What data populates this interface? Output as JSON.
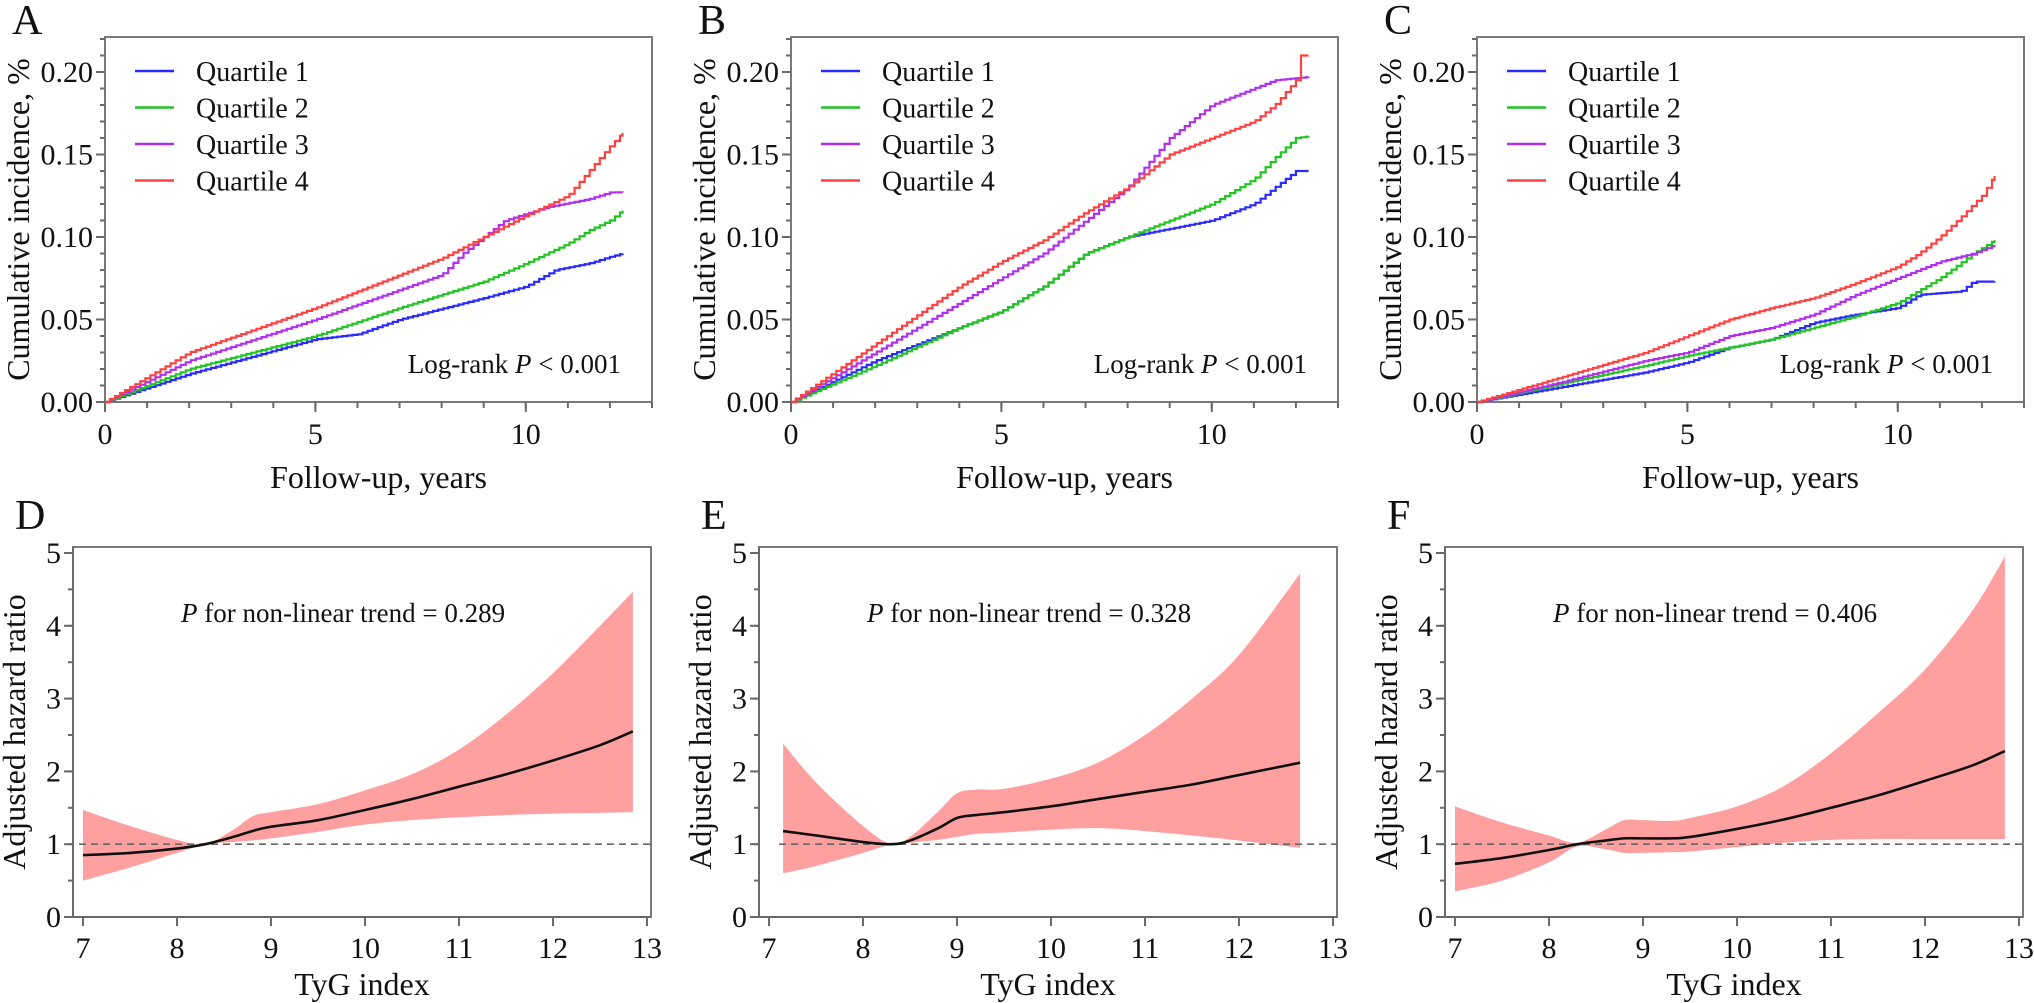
{
  "chart_data": [
    {
      "panel": "A",
      "type": "line",
      "xlabel": "Follow-up, years",
      "ylabel": "Cumulative incidence, %",
      "xlim": [
        0,
        13
      ],
      "ylim": [
        0,
        0.22
      ],
      "xticks": [
        0,
        5,
        10
      ],
      "xtick_labels": [
        "0",
        "5",
        "10"
      ],
      "yticks": [
        0,
        0.05,
        0.1,
        0.15,
        0.2
      ],
      "ytick_labels": [
        "0.00",
        "0.05",
        "0.10",
        "0.15",
        "0.20"
      ],
      "legend": "top-left",
      "grid": false,
      "annotation": {
        "prefix": "Log-rank ",
        "italic": "P",
        "suffix": " < 0.001"
      },
      "series": [
        {
          "name": "Quartile 1",
          "color": "#2a2aff",
          "points": [
            [
              0,
              0
            ],
            [
              2,
              0.017
            ],
            [
              5,
              0.038
            ],
            [
              6,
              0.041
            ],
            [
              7,
              0.05
            ],
            [
              9,
              0.063
            ],
            [
              10,
              0.07
            ],
            [
              10.7,
              0.08
            ],
            [
              11.5,
              0.084
            ],
            [
              12,
              0.088
            ],
            [
              12.3,
              0.09
            ]
          ]
        },
        {
          "name": "Quartile 2",
          "color": "#22c422",
          "points": [
            [
              0,
              0
            ],
            [
              2,
              0.02
            ],
            [
              5,
              0.04
            ],
            [
              7,
              0.057
            ],
            [
              9,
              0.073
            ],
            [
              10,
              0.084
            ],
            [
              11,
              0.096
            ],
            [
              11.5,
              0.104
            ],
            [
              12,
              0.11
            ],
            [
              12.3,
              0.116
            ]
          ]
        },
        {
          "name": "Quartile 3",
          "color": "#b030f0",
          "points": [
            [
              0,
              0
            ],
            [
              2,
              0.025
            ],
            [
              5,
              0.05
            ],
            [
              7,
              0.068
            ],
            [
              8,
              0.077
            ],
            [
              8.5,
              0.09
            ],
            [
              9.5,
              0.11
            ],
            [
              10.5,
              0.118
            ],
            [
              11.5,
              0.123
            ],
            [
              12,
              0.127
            ],
            [
              12.3,
              0.127
            ]
          ]
        },
        {
          "name": "Quartile 4",
          "color": "#ff4040",
          "points": [
            [
              0,
              0
            ],
            [
              2,
              0.03
            ],
            [
              5,
              0.057
            ],
            [
              7,
              0.077
            ],
            [
              8,
              0.087
            ],
            [
              9,
              0.1
            ],
            [
              10,
              0.113
            ],
            [
              11,
              0.125
            ],
            [
              11.5,
              0.14
            ],
            [
              12,
              0.155
            ],
            [
              12.3,
              0.163
            ]
          ]
        }
      ]
    },
    {
      "panel": "B",
      "type": "line",
      "xlabel": "Follow-up, years",
      "ylabel": "Cumulative incidence, %",
      "xlim": [
        0,
        13
      ],
      "ylim": [
        0,
        0.22
      ],
      "xticks": [
        0,
        5,
        10
      ],
      "xtick_labels": [
        "0",
        "5",
        "10"
      ],
      "yticks": [
        0,
        0.05,
        0.1,
        0.15,
        0.2
      ],
      "ytick_labels": [
        "0.00",
        "0.05",
        "0.10",
        "0.15",
        "0.20"
      ],
      "legend": "top-left",
      "grid": false,
      "annotation": {
        "prefix": "Log-rank ",
        "italic": "P",
        "suffix": " < 0.001"
      },
      "series": [
        {
          "name": "Quartile 1",
          "color": "#2a2aff",
          "points": [
            [
              0,
              0
            ],
            [
              2,
              0.025
            ],
            [
              4,
              0.045
            ],
            [
              5,
              0.055
            ],
            [
              6,
              0.07
            ],
            [
              7,
              0.09
            ],
            [
              8,
              0.1
            ],
            [
              9,
              0.105
            ],
            [
              10,
              0.11
            ],
            [
              11,
              0.12
            ],
            [
              11.5,
              0.13
            ],
            [
              12,
              0.14
            ],
            [
              12.3,
              0.14
            ]
          ]
        },
        {
          "name": "Quartile 2",
          "color": "#22c422",
          "points": [
            [
              0,
              0
            ],
            [
              2,
              0.022
            ],
            [
              4,
              0.045
            ],
            [
              5,
              0.055
            ],
            [
              6,
              0.07
            ],
            [
              7,
              0.09
            ],
            [
              8,
              0.1
            ],
            [
              9,
              0.11
            ],
            [
              10,
              0.12
            ],
            [
              11,
              0.135
            ],
            [
              11.5,
              0.148
            ],
            [
              12,
              0.16
            ],
            [
              12.3,
              0.161
            ]
          ]
        },
        {
          "name": "Quartile 3",
          "color": "#b030f0",
          "points": [
            [
              0,
              0
            ],
            [
              2,
              0.03
            ],
            [
              4,
              0.06
            ],
            [
              5,
              0.075
            ],
            [
              6,
              0.09
            ],
            [
              7,
              0.11
            ],
            [
              8,
              0.13
            ],
            [
              9,
              0.16
            ],
            [
              10,
              0.18
            ],
            [
              11,
              0.19
            ],
            [
              11.5,
              0.195
            ],
            [
              12.3,
              0.197
            ]
          ]
        },
        {
          "name": "Quartile 4",
          "color": "#ff4040",
          "points": [
            [
              0,
              0
            ],
            [
              2,
              0.035
            ],
            [
              4,
              0.07
            ],
            [
              5,
              0.085
            ],
            [
              6,
              0.098
            ],
            [
              7,
              0.115
            ],
            [
              8,
              0.13
            ],
            [
              9,
              0.15
            ],
            [
              10,
              0.16
            ],
            [
              11,
              0.17
            ],
            [
              11.5,
              0.18
            ],
            [
              12,
              0.195
            ],
            [
              12.1,
              0.21
            ],
            [
              12.3,
              0.21
            ]
          ]
        }
      ]
    },
    {
      "panel": "C",
      "type": "line",
      "xlabel": "Follow-up, years",
      "ylabel": "Cumulative incidence, %",
      "xlim": [
        0,
        13
      ],
      "ylim": [
        0,
        0.22
      ],
      "xticks": [
        0,
        5,
        10
      ],
      "xtick_labels": [
        "0",
        "5",
        "10"
      ],
      "yticks": [
        0,
        0.05,
        0.1,
        0.15,
        0.2
      ],
      "ytick_labels": [
        "0.00",
        "0.05",
        "0.10",
        "0.15",
        "0.20"
      ],
      "legend": "top-left",
      "grid": false,
      "annotation": {
        "prefix": "Log-rank ",
        "italic": "P",
        "suffix": " < 0.001"
      },
      "series": [
        {
          "name": "Quartile 1",
          "color": "#2a2aff",
          "points": [
            [
              0,
              0
            ],
            [
              2,
              0.009
            ],
            [
              4,
              0.018
            ],
            [
              5,
              0.024
            ],
            [
              6,
              0.033
            ],
            [
              7,
              0.038
            ],
            [
              8,
              0.048
            ],
            [
              9,
              0.053
            ],
            [
              10,
              0.057
            ],
            [
              10.5,
              0.065
            ],
            [
              11.5,
              0.067
            ],
            [
              11.8,
              0.073
            ],
            [
              12.3,
              0.073
            ]
          ]
        },
        {
          "name": "Quartile 2",
          "color": "#22c422",
          "points": [
            [
              0,
              0
            ],
            [
              2,
              0.011
            ],
            [
              4,
              0.022
            ],
            [
              5,
              0.028
            ],
            [
              6,
              0.033
            ],
            [
              7,
              0.038
            ],
            [
              8,
              0.045
            ],
            [
              9,
              0.052
            ],
            [
              10,
              0.06
            ],
            [
              11,
              0.075
            ],
            [
              11.8,
              0.09
            ],
            [
              12.3,
              0.098
            ]
          ]
        },
        {
          "name": "Quartile 3",
          "color": "#b030f0",
          "points": [
            [
              0,
              0
            ],
            [
              2,
              0.012
            ],
            [
              4,
              0.025
            ],
            [
              5,
              0.03
            ],
            [
              6,
              0.04
            ],
            [
              7,
              0.045
            ],
            [
              8,
              0.053
            ],
            [
              9,
              0.065
            ],
            [
              10,
              0.075
            ],
            [
              11,
              0.085
            ],
            [
              11.8,
              0.09
            ],
            [
              12.3,
              0.095
            ]
          ]
        },
        {
          "name": "Quartile 4",
          "color": "#ff4040",
          "points": [
            [
              0,
              0
            ],
            [
              2,
              0.015
            ],
            [
              4,
              0.03
            ],
            [
              5,
              0.04
            ],
            [
              6,
              0.05
            ],
            [
              7,
              0.057
            ],
            [
              8,
              0.063
            ],
            [
              9,
              0.072
            ],
            [
              10,
              0.082
            ],
            [
              10.5,
              0.09
            ],
            [
              11,
              0.1
            ],
            [
              11.5,
              0.112
            ],
            [
              12,
              0.125
            ],
            [
              12.3,
              0.137
            ]
          ]
        }
      ]
    },
    {
      "panel": "D",
      "type": "area",
      "xlabel": "TyG index",
      "ylabel": "Adjusted hazard ratio",
      "xlim": [
        7,
        13
      ],
      "ylim": [
        0,
        5
      ],
      "xticks": [
        7,
        8,
        9,
        10,
        11,
        12,
        13
      ],
      "xtick_labels": [
        "7",
        "8",
        "9",
        "10",
        "11",
        "12",
        "13"
      ],
      "yticks": [
        0,
        1,
        2,
        3,
        4,
        5
      ],
      "ytick_labels": [
        "0",
        "1",
        "2",
        "3",
        "4",
        "5"
      ],
      "reference_line": 1,
      "grid": false,
      "line_color": "#111111",
      "band_color": "#ffa0a0",
      "annotation": {
        "prefix": "",
        "italic": "P",
        "suffix": " for non-linear trend = 0.289"
      },
      "x": [
        7,
        7.5,
        8,
        8.3,
        8.6,
        8.8,
        9,
        9.5,
        10,
        10.5,
        11,
        11.5,
        12,
        12.5,
        12.85
      ],
      "hr": [
        0.85,
        0.88,
        0.94,
        1.0,
        1.1,
        1.18,
        1.24,
        1.33,
        1.47,
        1.62,
        1.79,
        1.96,
        2.15,
        2.36,
        2.55
      ],
      "lower": [
        0.5,
        0.68,
        0.88,
        1.0,
        1.03,
        1.05,
        1.08,
        1.17,
        1.27,
        1.33,
        1.37,
        1.4,
        1.42,
        1.43,
        1.44
      ],
      "upper": [
        1.47,
        1.25,
        1.06,
        1.0,
        1.2,
        1.38,
        1.44,
        1.55,
        1.74,
        1.96,
        2.3,
        2.78,
        3.35,
        4.0,
        4.47
      ]
    },
    {
      "panel": "E",
      "type": "area",
      "xlabel": "TyG index",
      "ylabel": "Adjusted hazard ratio",
      "xlim": [
        7,
        13
      ],
      "ylim": [
        0,
        5
      ],
      "xticks": [
        7,
        8,
        9,
        10,
        11,
        12,
        13
      ],
      "xtick_labels": [
        "7",
        "8",
        "9",
        "10",
        "11",
        "12",
        "13"
      ],
      "yticks": [
        0,
        1,
        2,
        3,
        4,
        5
      ],
      "ytick_labels": [
        "0",
        "1",
        "2",
        "3",
        "4",
        "5"
      ],
      "reference_line": 1,
      "grid": false,
      "line_color": "#111111",
      "band_color": "#ffa0a0",
      "annotation": {
        "prefix": "",
        "italic": "P",
        "suffix": " for non-linear trend = 0.328"
      },
      "x": [
        7.15,
        7.5,
        8,
        8.3,
        8.5,
        8.8,
        9,
        9.2,
        9.5,
        10,
        10.5,
        11,
        11.5,
        12,
        12.65
      ],
      "hr": [
        1.18,
        1.12,
        1.03,
        1.0,
        1.05,
        1.22,
        1.36,
        1.4,
        1.44,
        1.52,
        1.62,
        1.72,
        1.82,
        1.95,
        2.12
      ],
      "lower": [
        0.6,
        0.7,
        0.88,
        1.0,
        1.02,
        1.06,
        1.1,
        1.14,
        1.16,
        1.2,
        1.22,
        1.18,
        1.12,
        1.05,
        0.95
      ],
      "upper": [
        2.38,
        1.85,
        1.25,
        1.0,
        1.1,
        1.45,
        1.7,
        1.75,
        1.76,
        1.9,
        2.12,
        2.5,
        3.0,
        3.6,
        4.72
      ]
    },
    {
      "panel": "F",
      "type": "area",
      "xlabel": "TyG index",
      "ylabel": "Adjusted hazard ratio",
      "xlim": [
        7,
        13
      ],
      "ylim": [
        0,
        5
      ],
      "xticks": [
        7,
        8,
        9,
        10,
        11,
        12,
        13
      ],
      "xtick_labels": [
        "7",
        "8",
        "9",
        "10",
        "11",
        "12",
        "13"
      ],
      "yticks": [
        0,
        1,
        2,
        3,
        4,
        5
      ],
      "ytick_labels": [
        "0",
        "1",
        "2",
        "3",
        "4",
        "5"
      ],
      "reference_line": 1,
      "grid": false,
      "line_color": "#111111",
      "band_color": "#ffa0a0",
      "annotation": {
        "prefix": "",
        "italic": "P",
        "suffix": " for non-linear trend = 0.406"
      },
      "x": [
        7,
        7.5,
        8,
        8.3,
        8.6,
        8.8,
        9,
        9.3,
        9.5,
        10,
        10.5,
        11,
        11.5,
        12,
        12.5,
        12.85
      ],
      "hr": [
        0.73,
        0.81,
        0.92,
        1.0,
        1.05,
        1.08,
        1.08,
        1.08,
        1.1,
        1.21,
        1.34,
        1.5,
        1.67,
        1.87,
        2.08,
        2.28
      ],
      "lower": [
        0.35,
        0.5,
        0.75,
        0.97,
        0.93,
        0.88,
        0.88,
        0.89,
        0.9,
        0.96,
        1.02,
        1.06,
        1.07,
        1.07,
        1.07,
        1.07
      ],
      "upper": [
        1.52,
        1.3,
        1.12,
        1.02,
        1.2,
        1.33,
        1.33,
        1.32,
        1.36,
        1.52,
        1.8,
        2.25,
        2.8,
        3.4,
        4.2,
        4.95
      ]
    }
  ]
}
